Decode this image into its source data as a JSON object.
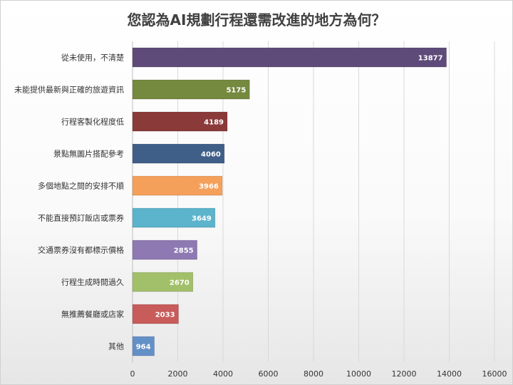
{
  "chart_data": {
    "type": "bar",
    "orientation": "horizontal",
    "title": "您認為AI規劃行程還需改進的地方為何？",
    "categories": [
      "從未使用，不清楚",
      "未能提供最新與正確的旅遊資訊",
      "行程客製化程度低",
      "景點無圖片搭配參考",
      "多個地點之間的安排不順",
      "不能直接預訂飯店或票券",
      "交通票券沒有都標示價格",
      "行程生成時間過久",
      "無推薦餐廳或店家",
      "其他"
    ],
    "values": [
      13877,
      5175,
      4189,
      4060,
      3966,
      3649,
      2855,
      2670,
      2033,
      964
    ],
    "colors": [
      "#5f4b7a",
      "#75893f",
      "#8b3a3a",
      "#3f5f88",
      "#f5a05a",
      "#5bb4cc",
      "#8e79b3",
      "#a2c06a",
      "#c75c5a",
      "#6490c8"
    ],
    "xlim": [
      0,
      16000
    ],
    "xticks": [
      0,
      2000,
      4000,
      6000,
      8000,
      10000,
      12000,
      14000,
      16000
    ],
    "grid": true,
    "legend": "none",
    "data_labels": true
  }
}
